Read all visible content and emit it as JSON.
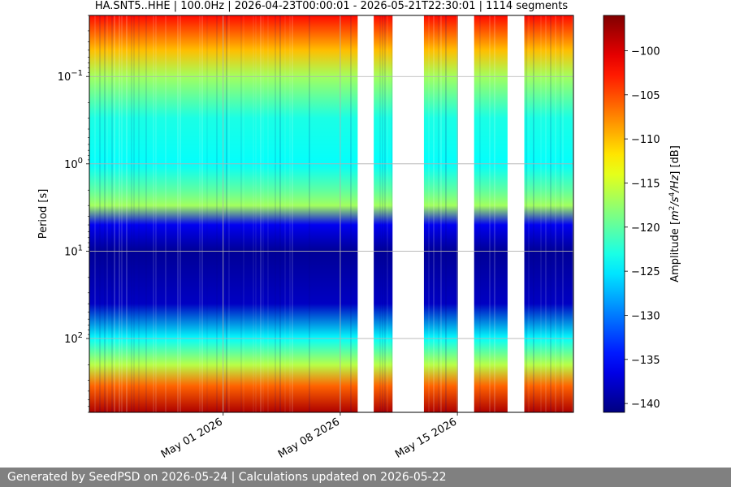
{
  "chart_data": {
    "type": "heatmap",
    "title": "HA.SNT5..HHE | 100.0Hz | 2026-04-23T00:00:01 - 2026-05-21T22:30:01 | 1114 segments",
    "ylabel": "Period [s]",
    "yscale": "log",
    "y_inverted": true,
    "ylim": [
      0.02,
      700
    ],
    "y_ticks": [
      {
        "value": 0.1,
        "base": "10",
        "exp": "−1"
      },
      {
        "value": 1,
        "base": "10",
        "exp": "0"
      },
      {
        "value": 10,
        "base": "10",
        "exp": "1"
      },
      {
        "value": 100,
        "base": "10",
        "exp": "2"
      }
    ],
    "xlim": [
      "2026-04-23T00:00:01",
      "2026-05-21T22:30:01"
    ],
    "x_ticks": [
      {
        "value": "2026-05-01",
        "label": "May 01 2026"
      },
      {
        "value": "2026-05-08",
        "label": "May 08 2026"
      },
      {
        "value": "2026-05-15",
        "label": "May 15 2026"
      }
    ],
    "grid": true,
    "data_gaps": [
      {
        "start": "2026-05-09T01:00:00",
        "end": "2026-05-10T00:00:00"
      },
      {
        "start": "2026-05-11T03:00:00",
        "end": "2026-05-13T00:00:00"
      },
      {
        "start": "2026-05-15T01:00:00",
        "end": "2026-05-16T00:00:00"
      },
      {
        "start": "2026-05-18T00:00:00",
        "end": "2026-05-19T00:00:00"
      }
    ],
    "amplitude_profile_db": [
      {
        "period": 0.02,
        "db": -102
      },
      {
        "period": 0.05,
        "db": -110
      },
      {
        "period": 0.1,
        "db": -117
      },
      {
        "period": 0.3,
        "db": -123
      },
      {
        "period": 1.0,
        "db": -124
      },
      {
        "period": 2.0,
        "db": -120
      },
      {
        "period": 3.0,
        "db": -117
      },
      {
        "period": 5.0,
        "db": -136
      },
      {
        "period": 10,
        "db": -140
      },
      {
        "period": 40,
        "db": -138
      },
      {
        "period": 100,
        "db": -124
      },
      {
        "period": 200,
        "db": -116
      },
      {
        "period": 350,
        "db": -106
      },
      {
        "period": 700,
        "db": -98
      }
    ],
    "colorbar": {
      "label": "Amplitude [m²/s⁴/Hz] [dB]",
      "colormap": "jet",
      "vmin": -141,
      "vmax": -96,
      "ticks": [
        -100,
        -105,
        -110,
        -115,
        -120,
        -125,
        -130,
        -135,
        -140
      ],
      "tick_labels": [
        "−100",
        "−105",
        "−110",
        "−115",
        "−120",
        "−125",
        "−130",
        "−135",
        "−140"
      ]
    }
  },
  "footer": {
    "text": "Generated by SeedPSD on 2026-05-24 | Calculations updated on 2026-05-22"
  }
}
